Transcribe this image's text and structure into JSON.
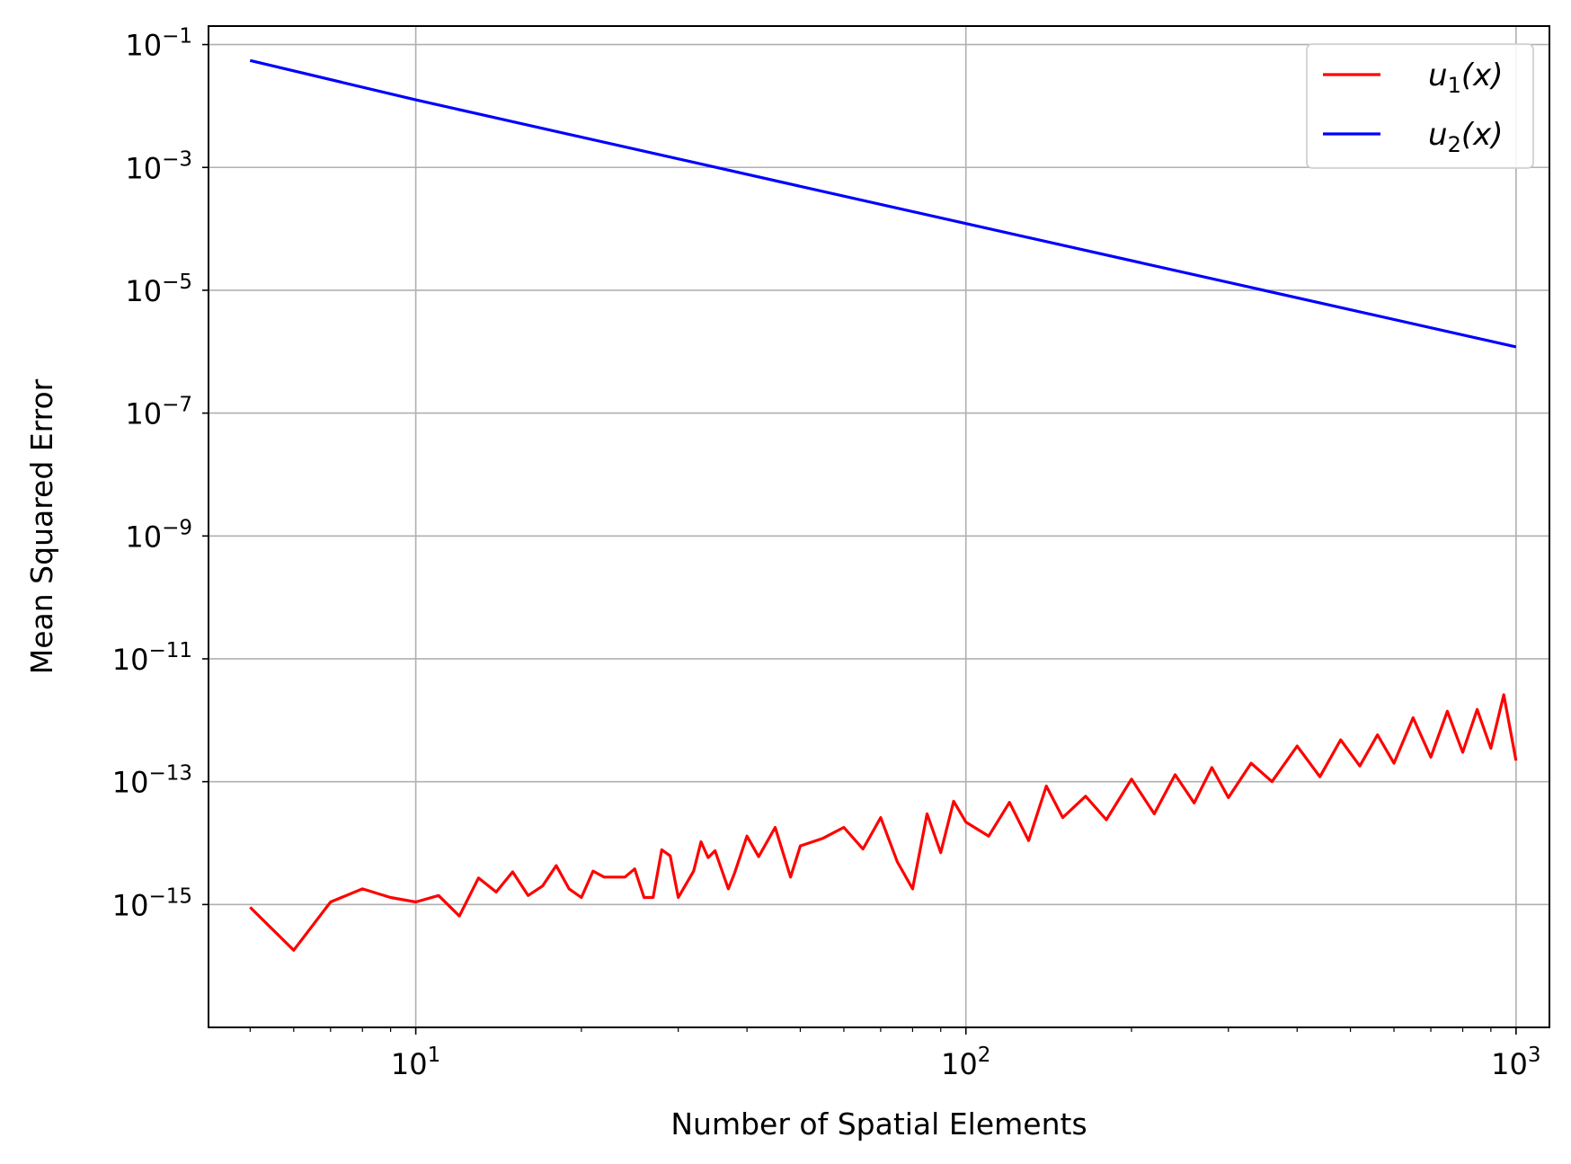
{
  "chart_data": {
    "type": "line",
    "xlabel": "Number of Spatial Elements",
    "ylabel": "Mean Squared Error",
    "xscale": "log",
    "yscale": "log",
    "xlim": [
      4.2,
      1150
    ],
    "ylim": [
      1e-17,
      0.2
    ],
    "grid": true,
    "legend_position": "top-right",
    "x_ticks": [
      {
        "value": 10,
        "base": "10",
        "exp": "1"
      },
      {
        "value": 100,
        "base": "10",
        "exp": "2"
      },
      {
        "value": 1000,
        "base": "10",
        "exp": "3"
      }
    ],
    "y_ticks": [
      {
        "value": 0.1,
        "base": "10",
        "exp": "−1"
      },
      {
        "value": 0.001,
        "base": "10",
        "exp": "−3"
      },
      {
        "value": 1e-05,
        "base": "10",
        "exp": "−5"
      },
      {
        "value": 1e-07,
        "base": "10",
        "exp": "−7"
      },
      {
        "value": 1e-09,
        "base": "10",
        "exp": "−9"
      },
      {
        "value": 1e-11,
        "base": "10",
        "exp": "−11"
      },
      {
        "value": 1e-13,
        "base": "10",
        "exp": "−13"
      },
      {
        "value": 1e-15,
        "base": "10",
        "exp": "−15"
      }
    ],
    "series": [
      {
        "name": "u1(x)",
        "legend": {
          "base": "u",
          "sub": "1",
          "suffix": "(x)"
        },
        "color": "#ff0000",
        "x": [
          5,
          6,
          7,
          8,
          9,
          10,
          11,
          12,
          13,
          14,
          15,
          16,
          17,
          18,
          19,
          20,
          21,
          22,
          24,
          25,
          26,
          27,
          28,
          29,
          30,
          32,
          33,
          34,
          35,
          37,
          38,
          40,
          42,
          45,
          48,
          50,
          55,
          60,
          65,
          70,
          75,
          80,
          85,
          90,
          95,
          100,
          110,
          120,
          130,
          140,
          150,
          165,
          180,
          200,
          220,
          240,
          260,
          280,
          300,
          330,
          360,
          400,
          440,
          480,
          520,
          560,
          600,
          650,
          700,
          750,
          800,
          850,
          900,
          950,
          1000
        ],
        "y": [
          9e-16,
          1.8e-16,
          1.1e-15,
          1.8e-15,
          1.3e-15,
          1.1e-15,
          1.4e-15,
          6.5e-16,
          2.7e-15,
          1.6e-15,
          3.4e-15,
          1.4e-15,
          2e-15,
          4.3e-15,
          1.8e-15,
          1.3e-15,
          3.5e-15,
          2.8e-15,
          2.8e-15,
          3.8e-15,
          1.3e-15,
          1.3e-15,
          7.8e-15,
          6.2e-15,
          1.3e-15,
          3.5e-15,
          1.05e-14,
          5.8e-15,
          7.5e-15,
          1.8e-15,
          3.3e-15,
          1.3e-14,
          6e-15,
          1.8e-14,
          2.8e-15,
          9e-15,
          1.2e-14,
          1.8e-14,
          8e-15,
          2.6e-14,
          5e-15,
          1.8e-15,
          3e-14,
          7e-15,
          4.8e-14,
          2.2e-14,
          1.3e-14,
          4.6e-14,
          1.1e-14,
          8.5e-14,
          2.6e-14,
          5.8e-14,
          2.4e-14,
          1.1e-13,
          3e-14,
          1.3e-13,
          4.5e-14,
          1.7e-13,
          5.5e-14,
          2e-13,
          1e-13,
          3.8e-13,
          1.2e-13,
          4.8e-13,
          1.8e-13,
          5.8e-13,
          2e-13,
          1.1e-12,
          2.5e-13,
          1.4e-12,
          3e-13,
          1.5e-12,
          3.5e-13,
          2.6e-12,
          2.2e-13
        ]
      },
      {
        "name": "u2(x)",
        "legend": {
          "base": "u",
          "sub": "2",
          "suffix": "(x)"
        },
        "color": "#0000ff",
        "x": [
          5,
          10,
          100,
          1000
        ],
        "y": [
          0.055,
          0.0126,
          0.000122,
          1.2e-06
        ]
      }
    ]
  }
}
